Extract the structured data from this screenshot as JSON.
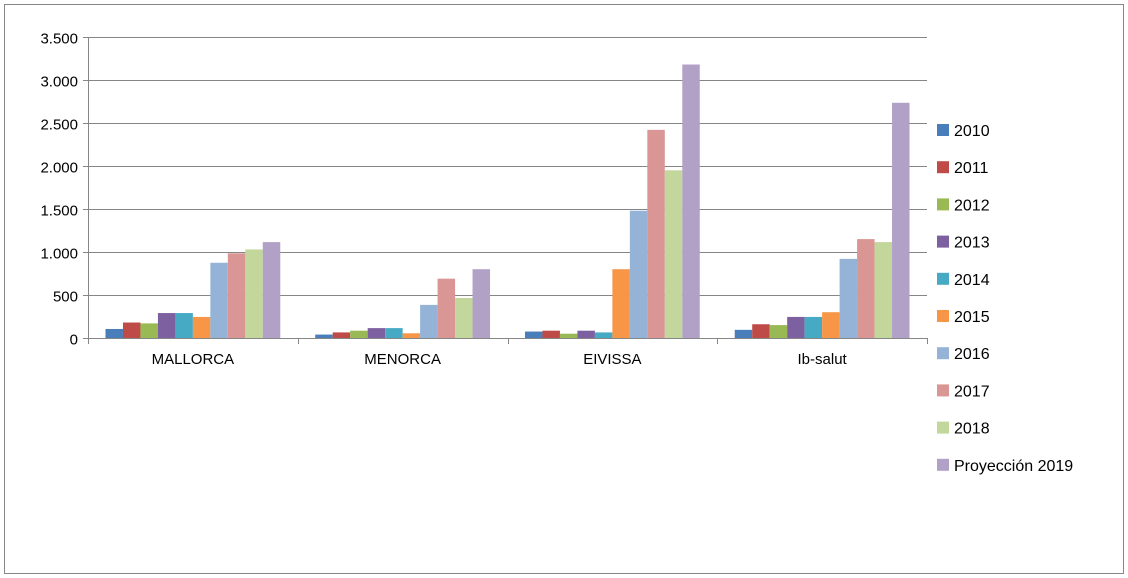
{
  "chart_data": {
    "type": "bar",
    "title": "",
    "xlabel": "",
    "ylabel": "",
    "categories": [
      "MALLORCA",
      "MENORCA",
      "EIVISSA",
      "Ib-salut"
    ],
    "ylim": [
      0,
      3500
    ],
    "yticks": [
      0,
      500,
      1000,
      1500,
      2000,
      2500,
      3000,
      3500
    ],
    "ytick_labels": [
      "0",
      "500",
      "1.000",
      "1.500",
      "2.000",
      "2.500",
      "3.000",
      "3.500"
    ],
    "grid": true,
    "legend_position": "right",
    "series": [
      {
        "name": "2010",
        "color": "#4a7ebb",
        "values": [
          105,
          40,
          75,
          95
        ]
      },
      {
        "name": "2011",
        "color": "#be4b48",
        "values": [
          180,
          65,
          85,
          160
        ]
      },
      {
        "name": "2012",
        "color": "#98b954",
        "values": [
          170,
          85,
          50,
          150
        ]
      },
      {
        "name": "2013",
        "color": "#7d60a0",
        "values": [
          290,
          115,
          85,
          245
        ]
      },
      {
        "name": "2014",
        "color": "#46aac5",
        "values": [
          290,
          115,
          65,
          245
        ]
      },
      {
        "name": "2015",
        "color": "#f79646",
        "values": [
          245,
          55,
          800,
          300
        ]
      },
      {
        "name": "2016",
        "color": "#95b3d7",
        "values": [
          875,
          385,
          1480,
          920
        ]
      },
      {
        "name": "2017",
        "color": "#d99694",
        "values": [
          985,
          690,
          2420,
          1150
        ]
      },
      {
        "name": "2018",
        "color": "#c3d69b",
        "values": [
          1030,
          465,
          1950,
          1115
        ]
      },
      {
        "name": "Proyección 2019",
        "color": "#b2a1c7",
        "values": [
          1115,
          800,
          3180,
          2735
        ]
      }
    ]
  }
}
